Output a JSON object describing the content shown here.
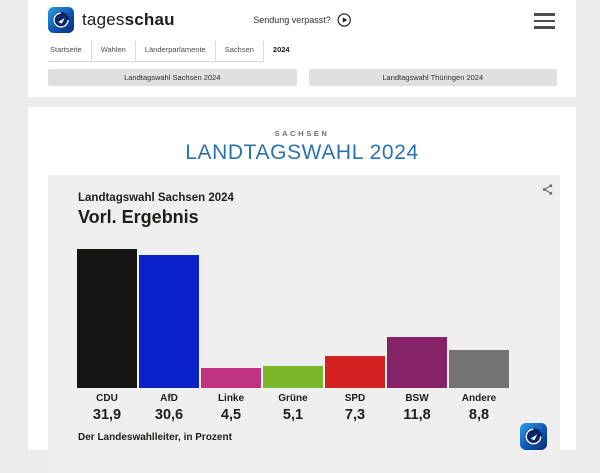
{
  "colors": {
    "page_bg": "#ececec",
    "chart_bg": "#f0efef",
    "title_blue": "#2a71b0",
    "text_dark": "#1d1d1b",
    "button_bg": "#e0e0e0"
  },
  "header": {
    "brand_regular": "tages",
    "brand_bold": "schau",
    "sendung_verpasst": "Sendung verpasst?",
    "breadcrumb": [
      "Startseite",
      "Wahlen",
      "Länderparlamente",
      "Sachsen",
      "2024"
    ],
    "nav_buttons": [
      "Landtagswahl Sachsen 2024",
      "Landtagswahl Thüringen 2024"
    ]
  },
  "main": {
    "kicker": "SACHSEN",
    "title": "LANDTAGSWAHL 2024"
  },
  "chart_data": {
    "type": "bar",
    "title": "Landtagswahl Sachsen 2024",
    "subtitle": "Vorl. Ergebnis",
    "source_note": "Der Landeswahlleiter, in Prozent",
    "categories": [
      "CDU",
      "AfD",
      "Linke",
      "Grüne",
      "SPD",
      "BSW",
      "Andere"
    ],
    "values": [
      31.9,
      30.6,
      4.5,
      5.1,
      7.3,
      11.8,
      8.8
    ],
    "value_labels": [
      "31,9",
      "30,6",
      "4,5",
      "5,1",
      "7,3",
      "11,8",
      "8,8"
    ],
    "bar_colors": [
      "#141413",
      "#0b22c8",
      "#bf3380",
      "#7ab829",
      "#d32020",
      "#862267",
      "#737373"
    ],
    "unit": "Prozent",
    "ylim": [
      0,
      32
    ],
    "grid": false,
    "legend": false
  }
}
